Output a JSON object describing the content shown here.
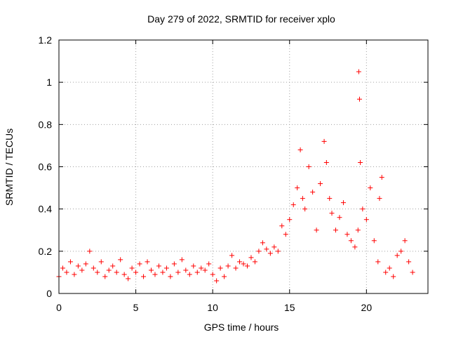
{
  "chart_data": {
    "type": "scatter",
    "title": "Day 279 of 2022, SRMTID for receiver xplo",
    "xlabel": "GPS time / hours",
    "ylabel": "SRMTID / TECUs",
    "xlim": [
      0,
      24
    ],
    "ylim": [
      0,
      1.2
    ],
    "xticks": [
      0,
      5,
      10,
      15,
      20
    ],
    "xtick_labels": [
      "0",
      "5",
      "10",
      "15",
      "20"
    ],
    "yticks": [
      0,
      0.2,
      0.4,
      0.6,
      0.8,
      1,
      1.2
    ],
    "ytick_labels": [
      "0",
      "0.2",
      "0.4",
      "0.6",
      "0.8",
      "1",
      "1.2"
    ],
    "grid": true,
    "marker": "+",
    "series": [
      {
        "name": "SRMTID",
        "color": "#ff0000",
        "x": [
          0.0,
          0.25,
          0.5,
          0.75,
          1.0,
          1.25,
          1.5,
          1.75,
          2.0,
          2.25,
          2.5,
          2.75,
          3.0,
          3.25,
          3.5,
          3.75,
          4.0,
          4.25,
          4.5,
          4.75,
          5.0,
          5.25,
          5.5,
          5.75,
          6.0,
          6.25,
          6.5,
          6.75,
          7.0,
          7.25,
          7.5,
          7.75,
          8.0,
          8.25,
          8.5,
          8.75,
          9.0,
          9.25,
          9.5,
          9.75,
          10.0,
          10.25,
          10.5,
          10.75,
          11.0,
          11.25,
          11.5,
          11.75,
          12.0,
          12.25,
          12.5,
          12.75,
          13.0,
          13.25,
          13.5,
          13.75,
          14.0,
          14.25,
          14.5,
          14.75,
          15.0,
          15.25,
          15.5,
          15.7,
          15.85,
          16.0,
          16.25,
          16.5,
          16.75,
          17.0,
          17.25,
          17.4,
          17.6,
          17.75,
          18.0,
          18.25,
          18.5,
          18.75,
          19.0,
          19.25,
          19.45,
          19.5,
          19.55,
          19.6,
          19.75,
          20.0,
          20.25,
          20.5,
          20.75,
          20.85,
          21.0,
          21.25,
          21.5,
          21.75,
          22.0,
          22.25,
          22.5,
          22.75,
          23.0
        ],
        "y": [
          0.08,
          0.12,
          0.1,
          0.15,
          0.09,
          0.13,
          0.11,
          0.14,
          0.2,
          0.12,
          0.1,
          0.15,
          0.08,
          0.11,
          0.13,
          0.1,
          0.16,
          0.09,
          0.07,
          0.12,
          0.1,
          0.14,
          0.08,
          0.15,
          0.11,
          0.09,
          0.13,
          0.1,
          0.12,
          0.08,
          0.14,
          0.1,
          0.16,
          0.11,
          0.09,
          0.13,
          0.1,
          0.12,
          0.11,
          0.14,
          0.09,
          0.06,
          0.12,
          0.08,
          0.13,
          0.18,
          0.12,
          0.15,
          0.14,
          0.13,
          0.17,
          0.15,
          0.2,
          0.24,
          0.21,
          0.19,
          0.22,
          0.2,
          0.32,
          0.28,
          0.35,
          0.42,
          0.5,
          0.68,
          0.45,
          0.4,
          0.6,
          0.48,
          0.3,
          0.52,
          0.72,
          0.62,
          0.45,
          0.38,
          0.3,
          0.36,
          0.43,
          0.28,
          0.25,
          0.22,
          0.3,
          1.05,
          0.92,
          0.62,
          0.4,
          0.35,
          0.5,
          0.25,
          0.15,
          0.45,
          0.55,
          0.1,
          0.12,
          0.08,
          0.18,
          0.2,
          0.25,
          0.15,
          0.1
        ]
      }
    ]
  }
}
